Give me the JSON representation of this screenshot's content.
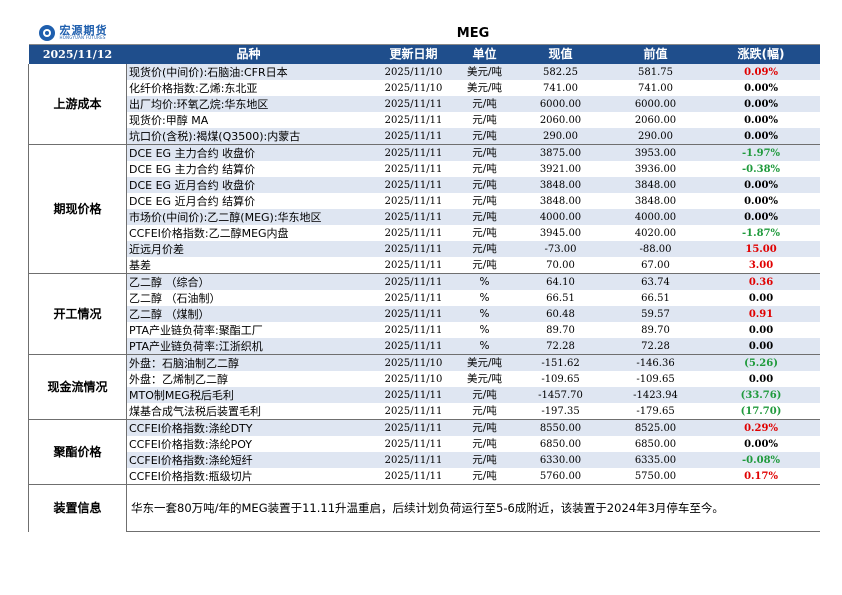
{
  "logo": {
    "cn": "宏源期货",
    "en": "HONGYUAN FUTURES"
  },
  "title": "MEG",
  "date": "2025/11/12",
  "headers": {
    "name": "品种",
    "date": "更新日期",
    "unit": "单位",
    "cur": "现值",
    "prev": "前值",
    "chg": "涨跌(幅)"
  },
  "groups": [
    {
      "label": "上游成本",
      "rows": [
        {
          "name": "现货价(中间价):石脑油:CFR日本",
          "date": "2025/11/10",
          "unit": "美元/吨",
          "cur": "582.25",
          "prev": "581.75",
          "chg": "0.09%",
          "color": "red"
        },
        {
          "name": "化纤价格指数:乙烯:东北亚",
          "date": "2025/11/10",
          "unit": "美元/吨",
          "cur": "741.00",
          "prev": "741.00",
          "chg": "0.00%",
          "color": "black"
        },
        {
          "name": "出厂均价:环氧乙烷:华东地区",
          "date": "2025/11/11",
          "unit": "元/吨",
          "cur": "6000.00",
          "prev": "6000.00",
          "chg": "0.00%",
          "color": "black"
        },
        {
          "name": "现货价:甲醇 MA",
          "date": "2025/11/11",
          "unit": "元/吨",
          "cur": "2060.00",
          "prev": "2060.00",
          "chg": "0.00%",
          "color": "black"
        },
        {
          "name": "坑口价(含税):褐煤(Q3500):内蒙古",
          "date": "2025/11/11",
          "unit": "元/吨",
          "cur": "290.00",
          "prev": "290.00",
          "chg": "0.00%",
          "color": "black"
        }
      ]
    },
    {
      "label": "期现价格",
      "rows": [
        {
          "name": "DCE EG 主力合约 收盘价",
          "date": "2025/11/11",
          "unit": "元/吨",
          "cur": "3875.00",
          "prev": "3953.00",
          "chg": "-1.97%",
          "color": "green"
        },
        {
          "name": "DCE EG 主力合约 结算价",
          "date": "2025/11/11",
          "unit": "元/吨",
          "cur": "3921.00",
          "prev": "3936.00",
          "chg": "-0.38%",
          "color": "green"
        },
        {
          "name": "DCE EG 近月合约 收盘价",
          "date": "2025/11/11",
          "unit": "元/吨",
          "cur": "3848.00",
          "prev": "3848.00",
          "chg": "0.00%",
          "color": "black"
        },
        {
          "name": "DCE EG 近月合约 结算价",
          "date": "2025/11/11",
          "unit": "元/吨",
          "cur": "3848.00",
          "prev": "3848.00",
          "chg": "0.00%",
          "color": "black"
        },
        {
          "name": "市场价(中间价):乙二醇(MEG):华东地区",
          "date": "2025/11/11",
          "unit": "元/吨",
          "cur": "4000.00",
          "prev": "4000.00",
          "chg": "0.00%",
          "color": "black"
        },
        {
          "name": "CCFEI价格指数:乙二醇MEG内盘",
          "date": "2025/11/11",
          "unit": "元/吨",
          "cur": "3945.00",
          "prev": "4020.00",
          "chg": "-1.87%",
          "color": "green"
        },
        {
          "name": "近远月价差",
          "date": "2025/11/11",
          "unit": "元/吨",
          "cur": "-73.00",
          "prev": "-88.00",
          "chg": "15.00",
          "color": "red"
        },
        {
          "name": "基差",
          "date": "2025/11/11",
          "unit": "元/吨",
          "cur": "70.00",
          "prev": "67.00",
          "chg": "3.00",
          "color": "red"
        }
      ]
    },
    {
      "label": "开工情况",
      "rows": [
        {
          "name": "乙二醇 （综合）",
          "date": "2025/11/11",
          "unit": "%",
          "cur": "64.10",
          "prev": "63.74",
          "chg": "0.36",
          "color": "red"
        },
        {
          "name": "乙二醇 （石油制）",
          "date": "2025/11/11",
          "unit": "%",
          "cur": "66.51",
          "prev": "66.51",
          "chg": "0.00",
          "color": "black"
        },
        {
          "name": "乙二醇 （煤制）",
          "date": "2025/11/11",
          "unit": "%",
          "cur": "60.48",
          "prev": "59.57",
          "chg": "0.91",
          "color": "red"
        },
        {
          "name": "PTA产业链负荷率:聚酯工厂",
          "date": "2025/11/11",
          "unit": "%",
          "cur": "89.70",
          "prev": "89.70",
          "chg": "0.00",
          "color": "black"
        },
        {
          "name": "PTA产业链负荷率:江浙织机",
          "date": "2025/11/11",
          "unit": "%",
          "cur": "72.28",
          "prev": "72.28",
          "chg": "0.00",
          "color": "black"
        }
      ]
    },
    {
      "label": "现金流情况",
      "rows": [
        {
          "name": "外盘：石脑油制乙二醇",
          "date": "2025/11/10",
          "unit": "美元/吨",
          "cur": "-151.62",
          "prev": "-146.36",
          "chg": "(5.26)",
          "color": "green"
        },
        {
          "name": "外盘：乙烯制乙二醇",
          "date": "2025/11/10",
          "unit": "美元/吨",
          "cur": "-109.65",
          "prev": "-109.65",
          "chg": "0.00",
          "color": "black"
        },
        {
          "name": "MTO制MEG税后毛利",
          "date": "2025/11/11",
          "unit": "元/吨",
          "cur": "-1457.70",
          "prev": "-1423.94",
          "chg": "(33.76)",
          "color": "green"
        },
        {
          "name": "煤基合成气法税后装置毛利",
          "date": "2025/11/11",
          "unit": "元/吨",
          "cur": "-197.35",
          "prev": "-179.65",
          "chg": "(17.70)",
          "color": "green"
        }
      ]
    },
    {
      "label": "聚酯价格",
      "rows": [
        {
          "name": "CCFEI价格指数:涤纶DTY",
          "date": "2025/11/11",
          "unit": "元/吨",
          "cur": "8550.00",
          "prev": "8525.00",
          "chg": "0.29%",
          "color": "red"
        },
        {
          "name": "CCFEI价格指数:涤纶POY",
          "date": "2025/11/11",
          "unit": "元/吨",
          "cur": "6850.00",
          "prev": "6850.00",
          "chg": "0.00%",
          "color": "black"
        },
        {
          "name": "CCFEI价格指数:涤纶短纤",
          "date": "2025/11/11",
          "unit": "元/吨",
          "cur": "6330.00",
          "prev": "6335.00",
          "chg": "-0.08%",
          "color": "green"
        },
        {
          "name": "CCFEI价格指数:瓶级切片",
          "date": "2025/11/11",
          "unit": "元/吨",
          "cur": "5760.00",
          "prev": "5750.00",
          "chg": "0.17%",
          "color": "red"
        }
      ]
    }
  ],
  "note": {
    "label": "装置信息",
    "text": "华东一套80万吨/年的MEG装置于11.11升温重启，后续计划负荷运行至5-6成附近，该装置于2024年3月停车至今。"
  },
  "colors": {
    "header_bg": "#1f4e8c",
    "shade": "#dfe6f2",
    "up": "#e00000",
    "down": "#1f9a3c"
  }
}
